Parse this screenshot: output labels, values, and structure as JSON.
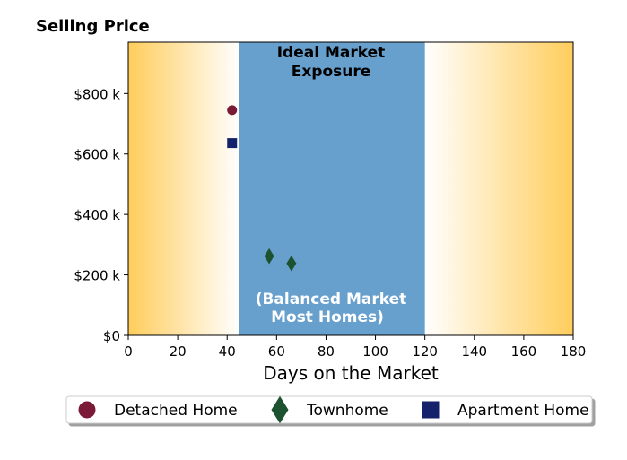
{
  "chart_data": {
    "type": "scatter",
    "title": "",
    "ylabel": "Selling Price",
    "xlabel": "Days on the Market",
    "xlim": [
      0,
      180
    ],
    "ylim": [
      0,
      970
    ],
    "x_ticks": [
      0,
      20,
      40,
      60,
      80,
      100,
      120,
      140,
      160,
      180
    ],
    "x_tick_labels": [
      "0",
      "20",
      "40",
      "60",
      "80",
      "100",
      "120",
      "140",
      "160",
      "180"
    ],
    "y_ticks": [
      0,
      200,
      400,
      600,
      800
    ],
    "y_tick_labels": [
      "$0",
      "$200 k",
      "$400 k",
      "$600 k",
      "$800 k"
    ],
    "ideal_band": {
      "x_start": 45,
      "x_end": 120,
      "color": "#679fcd",
      "label_top_line1": "Ideal Market",
      "label_top_line2": "Exposure",
      "label_bottom_line1": "(Balanced Market",
      "label_bottom_line2": "Most Homes)"
    },
    "background_gradient": {
      "edge_color": "#ffcd5c",
      "center_color": "#ffffff"
    },
    "series": [
      {
        "name": "Detached Home",
        "marker": "circle",
        "color": "#7b1a36",
        "points": [
          {
            "x": 42,
            "y": 745
          }
        ]
      },
      {
        "name": "Townhome",
        "marker": "diamond",
        "color": "#1c5230",
        "points": [
          {
            "x": 57,
            "y": 262
          },
          {
            "x": 66,
            "y": 238
          }
        ]
      },
      {
        "name": "Apartment Home",
        "marker": "square",
        "color": "#14216b",
        "points": [
          {
            "x": 42,
            "y": 636
          }
        ]
      }
    ],
    "grid": false,
    "legend": "bottom"
  }
}
